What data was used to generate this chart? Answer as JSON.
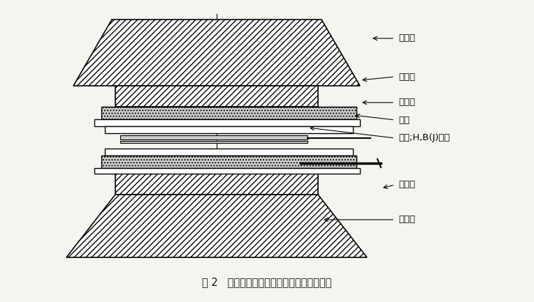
{
  "fig_width": 7.64,
  "fig_height": 4.33,
  "dpi": 100,
  "bg_color": "#f5f5f0",
  "title": "图 2   在闭合磁路中测量温度系数的加热装置",
  "labels": {
    "upper_pole": "上极头",
    "insulation": "绝热层",
    "heating_plate": "加热板",
    "pole_shoe": "极靴",
    "sample": "试样;H,B(J)线圈",
    "thermocouple": "热电偶",
    "lower_pole": "下极头"
  },
  "hatch_color": "#222222",
  "line_color": "#000000",
  "fill_color": "#ffffff",
  "dotted_fill": "#d8d8d8"
}
